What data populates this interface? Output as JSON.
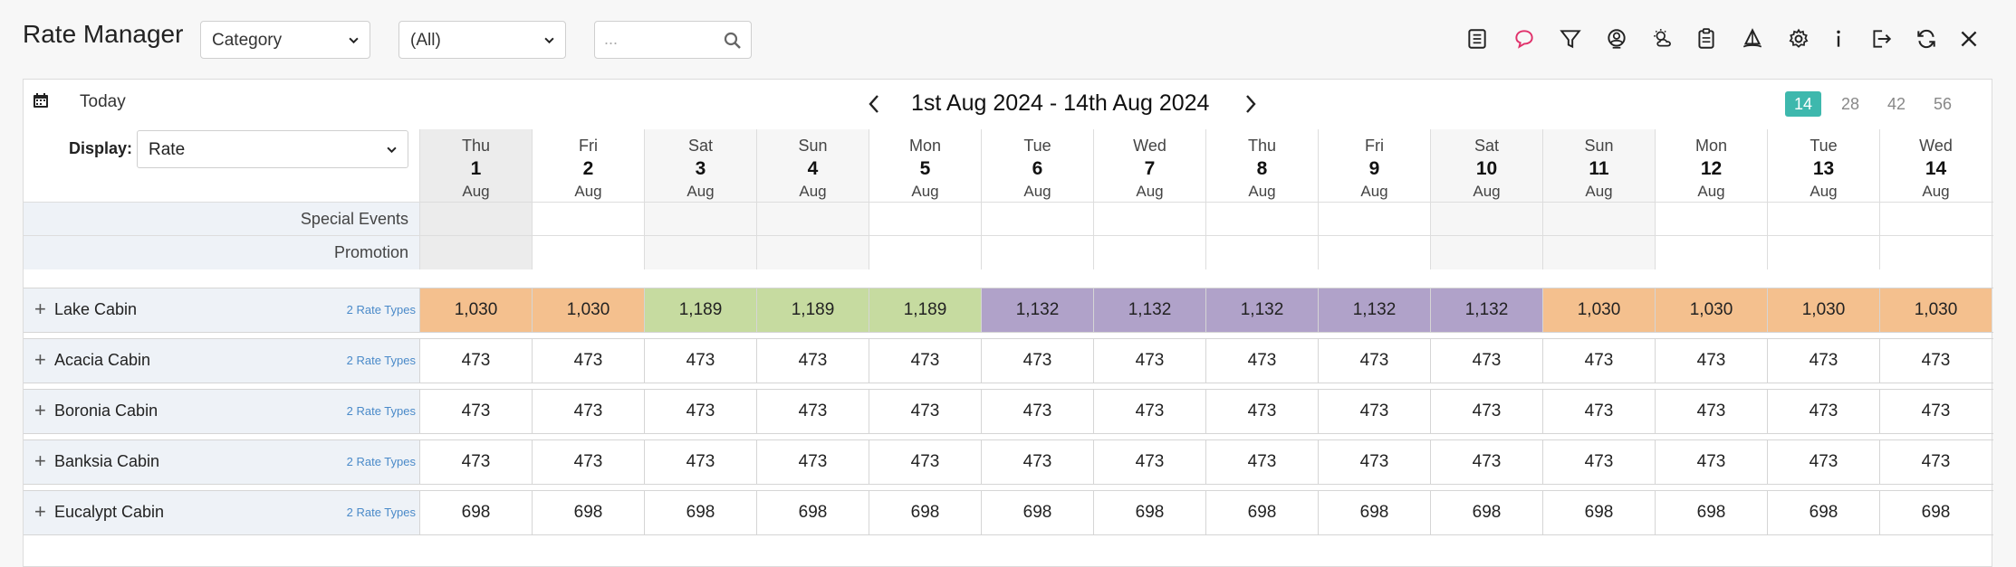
{
  "app": {
    "title": "Rate Manager"
  },
  "filters": {
    "group_by": "Category",
    "category": "(All)",
    "search_placeholder": "..."
  },
  "toolbar_icons": [
    "list-icon",
    "comment-icon",
    "filter-icon",
    "user-icon",
    "weather-icon",
    "clipboard-icon",
    "sail-icon",
    "gear-icon",
    "info-icon",
    "export-icon",
    "refresh-icon",
    "close-icon"
  ],
  "calendar": {
    "today_label": "Today",
    "range_title": "1st Aug 2024 - 14th Aug 2024",
    "spans": [
      "14",
      "28",
      "42",
      "56"
    ],
    "active_span": "14",
    "display_label": "Display:",
    "display_value": "Rate"
  },
  "days": [
    {
      "dow": "Thu",
      "date": "1",
      "month": "Aug"
    },
    {
      "dow": "Fri",
      "date": "2",
      "month": "Aug"
    },
    {
      "dow": "Sat",
      "date": "3",
      "month": "Aug"
    },
    {
      "dow": "Sun",
      "date": "4",
      "month": "Aug"
    },
    {
      "dow": "Mon",
      "date": "5",
      "month": "Aug"
    },
    {
      "dow": "Tue",
      "date": "6",
      "month": "Aug"
    },
    {
      "dow": "Wed",
      "date": "7",
      "month": "Aug"
    },
    {
      "dow": "Thu",
      "date": "8",
      "month": "Aug"
    },
    {
      "dow": "Fri",
      "date": "9",
      "month": "Aug"
    },
    {
      "dow": "Sat",
      "date": "10",
      "month": "Aug"
    },
    {
      "dow": "Sun",
      "date": "11",
      "month": "Aug"
    },
    {
      "dow": "Mon",
      "date": "12",
      "month": "Aug"
    },
    {
      "dow": "Tue",
      "date": "13",
      "month": "Aug"
    },
    {
      "dow": "Wed",
      "date": "14",
      "month": "Aug"
    }
  ],
  "info_rows": [
    {
      "label": "Special Events"
    },
    {
      "label": "Promotion"
    }
  ],
  "colors": {
    "orange": "#f4c08e",
    "green": "#c6dba0",
    "purple": "#b0a2c9",
    "accent": "#3eb8ad",
    "rate_types_link": "#4a8ac9"
  },
  "rooms": [
    {
      "name": "Lake Cabin",
      "rate_types": "2 Rate Types",
      "rates": [
        "1,030",
        "1,030",
        "1,189",
        "1,189",
        "1,189",
        "1,132",
        "1,132",
        "1,132",
        "1,132",
        "1,132",
        "1,030",
        "1,030",
        "1,030",
        "1,030"
      ],
      "colors": [
        "orange",
        "orange",
        "green",
        "green",
        "green",
        "purple",
        "purple",
        "purple",
        "purple",
        "purple",
        "orange",
        "orange",
        "orange",
        "orange"
      ]
    },
    {
      "name": "Acacia Cabin",
      "rate_types": "2 Rate Types",
      "rates": [
        "473",
        "473",
        "473",
        "473",
        "473",
        "473",
        "473",
        "473",
        "473",
        "473",
        "473",
        "473",
        "473",
        "473"
      ]
    },
    {
      "name": "Boronia Cabin",
      "rate_types": "2 Rate Types",
      "rates": [
        "473",
        "473",
        "473",
        "473",
        "473",
        "473",
        "473",
        "473",
        "473",
        "473",
        "473",
        "473",
        "473",
        "473"
      ]
    },
    {
      "name": "Banksia Cabin",
      "rate_types": "2 Rate Types",
      "rates": [
        "473",
        "473",
        "473",
        "473",
        "473",
        "473",
        "473",
        "473",
        "473",
        "473",
        "473",
        "473",
        "473",
        "473"
      ]
    },
    {
      "name": "Eucalypt Cabin",
      "rate_types": "2 Rate Types",
      "rates": [
        "698",
        "698",
        "698",
        "698",
        "698",
        "698",
        "698",
        "698",
        "698",
        "698",
        "698",
        "698",
        "698",
        "698"
      ]
    }
  ]
}
